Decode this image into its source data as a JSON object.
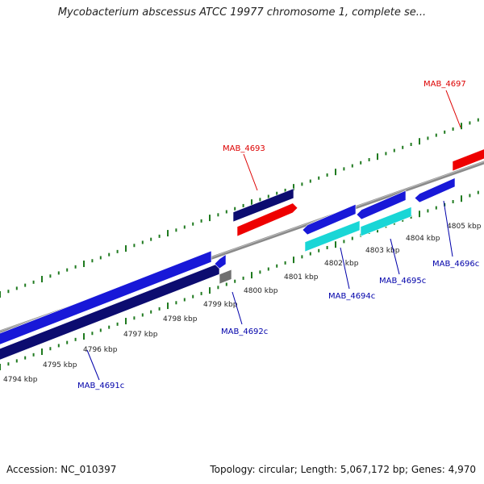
{
  "title": "Mycobacterium abscessus ATCC 19977 chromosome 1, complete se...",
  "footer": {
    "accession": "Accession: NC_010397",
    "summary": "Topology: circular; Length: 5,067,172 bp; Genes: 4,970"
  },
  "colors": {
    "backbone": "#8a8a8a",
    "tick": "#1f7a1f",
    "gene_blue": "#1818d8",
    "gene_navy": "#0c0c70",
    "gene_red": "#ee0000",
    "gene_cyan": "#19d6d6",
    "gene_gray": "#707070",
    "label_blue": "#0000aa",
    "label_red": "#dd0000"
  },
  "scale": {
    "unit": "kbp",
    "labels": [
      "4794 kbp",
      "4795 kbp",
      "4796 kbp",
      "4797 kbp",
      "4798 kbp",
      "4799 kbp",
      "4800 kbp",
      "4801 kbp",
      "4802 kbp",
      "4803 kbp",
      "4804 kbp",
      "4805 kbp"
    ]
  },
  "gene_labels": [
    {
      "id": "mab-4691c",
      "text": "MAB_4691c"
    },
    {
      "id": "mab-4692c",
      "text": "MAB_4692c"
    },
    {
      "id": "mab-4693",
      "text": "MAB_4693"
    },
    {
      "id": "mab-4694c",
      "text": "MAB_4694c"
    },
    {
      "id": "mab-4695c",
      "text": "MAB_4695c"
    },
    {
      "id": "mab-4696c",
      "text": "MAB_4696c"
    },
    {
      "id": "mab-4697",
      "text": "MAB_4697"
    }
  ]
}
